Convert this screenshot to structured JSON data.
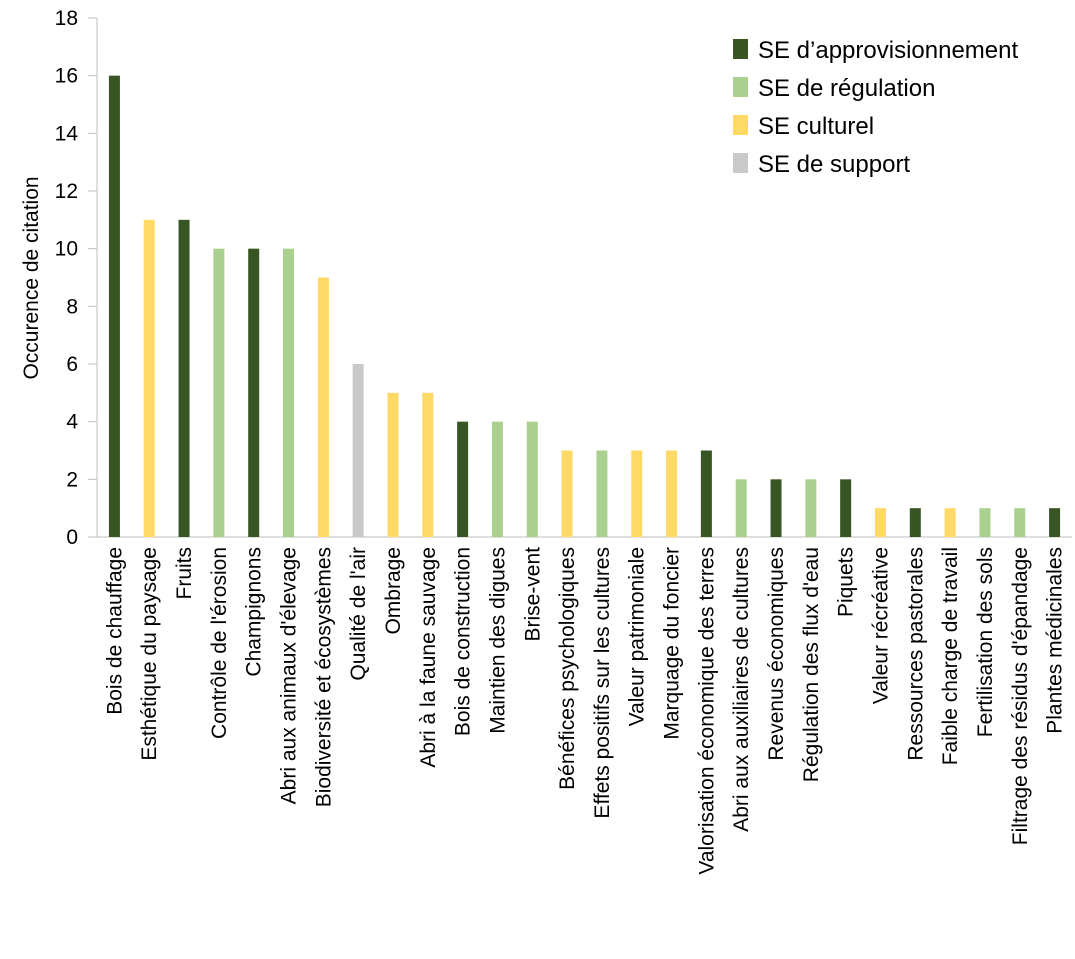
{
  "chart_data": {
    "type": "bar",
    "title": "",
    "xlabel": "",
    "ylabel": "Occurence de citation",
    "ylim": [
      0,
      18
    ],
    "yticks": [
      0,
      2,
      4,
      6,
      8,
      10,
      12,
      14,
      16,
      18
    ],
    "grid": false,
    "legend_position": "top-right",
    "categories": [
      "Bois de chauffage",
      "Esthétique du paysage",
      "Fruits",
      "Contrôle de l'érosion",
      "Champignons",
      "Abri aux animaux d'élevage",
      "Biodiversité et écosystèmes",
      "Qualité de l'air",
      "Ombrage",
      "Abri à la faune sauvage",
      "Bois de construction",
      "Maintien des digues",
      "Brise-vent",
      "Bénéfices psychologiques",
      "Effets positifs sur les cultures",
      "Valeur patrimoniale",
      "Marquage du foncier",
      "Valorisation économique des terres",
      "Abri aux auxiliaires de cultures",
      "Revenus économiques",
      "Régulation des flux d'eau",
      "Piquets",
      "Valeur récréative",
      "Ressources pastorales",
      "Faible charge de travail",
      "Fertilisation des sols",
      "Filtrage des résidus d'épandage",
      "Plantes médicinales"
    ],
    "values": [
      16,
      11,
      11,
      10,
      10,
      10,
      9,
      6,
      5,
      5,
      4,
      4,
      4,
      3,
      3,
      3,
      3,
      3,
      2,
      2,
      2,
      2,
      1,
      1,
      1,
      1,
      1,
      1
    ],
    "bar_groups": [
      0,
      2,
      0,
      1,
      0,
      1,
      2,
      3,
      2,
      2,
      0,
      1,
      1,
      2,
      1,
      2,
      2,
      0,
      1,
      0,
      1,
      0,
      2,
      0,
      2,
      1,
      1,
      0
    ],
    "series": [
      {
        "name": "SE d’approvisionnement",
        "color": "#375623"
      },
      {
        "name": "SE de régulation",
        "color": "#A9D08E"
      },
      {
        "name": "SE culturel",
        "color": "#FFD966"
      },
      {
        "name": "SE de support",
        "color": "#C9C9C9"
      }
    ]
  }
}
